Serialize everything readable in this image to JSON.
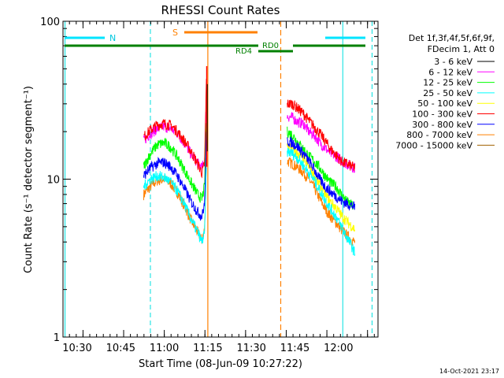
{
  "chart_data": {
    "type": "line",
    "title": "RHESSI Count Rates",
    "xlabel": "Start Time (08-Jun-09 10:27:22)",
    "ylabel": "Count Rate (s⁻¹ detector segment⁻¹)",
    "y_scale": "log",
    "ylim": [
      1,
      100
    ],
    "xlim_minutes": [
      10.25,
      126.5
    ],
    "x_ticks": [
      "10:30",
      "10:45",
      "11:00",
      "11:15",
      "11:30",
      "11:45",
      "12:00"
    ],
    "y_ticks": [
      "1",
      "10",
      "100"
    ],
    "grid": false,
    "legend_position": "right",
    "legend_header": [
      "Det 1f,3f,4f,5f,6f,9f,",
      "FDecim 1, Att 0"
    ],
    "footer": "14-Oct-2021 23:17",
    "flags": {
      "N_label": "N",
      "S_label": "S",
      "RD0_label": "RD0",
      "RD4_label": "RD4",
      "night_lines_minutes": [
        42.5,
        113.5,
        124.3
      ],
      "saa_lines_minutes": [
        63.7,
        90.6
      ]
    },
    "series": [
      {
        "name": "3 - 6 keV",
        "color": "#000000",
        "values_before": [],
        "values_after": []
      },
      {
        "name": "6 - 12 keV",
        "color": "#ff00ff",
        "x_before": [
          40,
          42.5,
          45,
          47.5,
          50,
          52.5,
          55,
          57.5,
          60,
          61.5,
          62.5,
          63.2
        ],
        "values_before": [
          17.5,
          19.5,
          20.8,
          21.5,
          21,
          19.5,
          17,
          14.5,
          12.6,
          11.8,
          13,
          30
        ],
        "x_after": [
          93,
          95,
          97,
          99,
          101,
          103,
          105,
          107,
          109,
          111,
          113,
          115,
          117,
          118
        ],
        "values_after": [
          25,
          24.5,
          23,
          22.5,
          20,
          19,
          17,
          15.8,
          14.5,
          14,
          13.2,
          12.5,
          12,
          11.8
        ]
      },
      {
        "name": "12 - 25 keV",
        "color": "#00ff00",
        "x_before": [
          40,
          42.5,
          45,
          47.5,
          50,
          52.5,
          55,
          57.5,
          60,
          61.5,
          62.5,
          63.2
        ],
        "values_before": [
          12,
          14.5,
          16.5,
          17,
          16,
          13.8,
          11.5,
          9.5,
          8,
          7.5,
          9,
          25
        ],
        "x_after": [
          93,
          95,
          97,
          99,
          101,
          103,
          105,
          107,
          109,
          111,
          113,
          115,
          117,
          118
        ],
        "values_after": [
          20,
          19,
          17,
          15.5,
          14,
          13,
          11.8,
          10.5,
          9.5,
          9,
          8,
          7.2,
          6.8,
          6.5
        ]
      },
      {
        "name": "25 - 50 keV",
        "color": "#00ffff",
        "x_before": [
          40,
          42.5,
          45,
          47.5,
          50,
          52.5,
          55,
          57.5,
          60,
          61.5,
          62.5,
          63.2
        ],
        "values_before": [
          9,
          10,
          10.5,
          10.3,
          9.6,
          8.4,
          7,
          5.6,
          4.6,
          4,
          4.5,
          12
        ],
        "x_after": [
          93,
          95,
          97,
          99,
          101,
          103,
          105,
          107,
          109,
          111,
          113,
          115,
          117,
          118
        ],
        "values_after": [
          15,
          14.5,
          13.5,
          12.2,
          11,
          9.8,
          8.5,
          7.4,
          6.5,
          5.8,
          5,
          4.3,
          3.7,
          3.4
        ]
      },
      {
        "name": "50 - 100 keV",
        "color": "#ffff00",
        "x_before": [],
        "values_before": [],
        "x_after": [
          93,
          95,
          97,
          99,
          101,
          103,
          105,
          107,
          109,
          111,
          113,
          115,
          117,
          118
        ],
        "values_after": [
          16.5,
          15.5,
          14.5,
          13.5,
          12,
          10.5,
          9.2,
          8,
          7.2,
          6.6,
          5.9,
          5.4,
          5,
          4.8
        ]
      },
      {
        "name": "100 - 300 keV",
        "color": "#ff0000",
        "x_before": [
          40,
          42.5,
          45,
          47.5,
          50,
          52.5,
          55,
          57.5,
          60,
          61.5,
          62.5,
          63.2
        ],
        "values_before": [
          18.5,
          20.5,
          22,
          22.5,
          22,
          20,
          17.5,
          15,
          12.5,
          11,
          12.5,
          45
        ],
        "x_after": [
          93,
          95,
          97,
          99,
          101,
          103,
          105,
          107,
          109,
          111,
          113,
          115,
          117,
          118
        ],
        "values_after": [
          30,
          30,
          28,
          26,
          23.5,
          21.5,
          19.5,
          17.5,
          15.5,
          14.3,
          13,
          12.5,
          12,
          11.8
        ]
      },
      {
        "name": "300 - 800 keV",
        "color": "#0000ff",
        "x_before": [
          40,
          42.5,
          45,
          47.5,
          50,
          52.5,
          55,
          57.5,
          60,
          61.5,
          62.5,
          63.2
        ],
        "values_before": [
          10.5,
          11.8,
          12.6,
          12.8,
          12,
          10.5,
          8.8,
          7.2,
          6.2,
          5.8,
          7,
          20
        ],
        "x_after": [
          93,
          95,
          97,
          99,
          101,
          103,
          105,
          107,
          109,
          111,
          113,
          115,
          117,
          118
        ],
        "values_after": [
          17.5,
          17,
          16,
          14.5,
          13,
          11.5,
          10,
          9,
          8.3,
          7.8,
          7.3,
          7,
          6.8,
          6.6
        ]
      },
      {
        "name": "800 - 7000 keV",
        "color": "#ff8000",
        "x_before": [
          40,
          42.5,
          45,
          47.5,
          50,
          52.5,
          55,
          57.5,
          60,
          61.5,
          62.5,
          63.2
        ],
        "values_before": [
          8,
          9,
          9.8,
          10,
          9.4,
          8.2,
          6.8,
          5.5,
          4.6,
          4.1,
          4.8,
          14
        ],
        "x_after": [
          93,
          95,
          97,
          99,
          101,
          103,
          105,
          107,
          109,
          111,
          113,
          115,
          117,
          118
        ],
        "values_after": [
          13,
          12.5,
          11.8,
          11,
          10,
          8.8,
          7.5,
          6.5,
          5.8,
          5.3,
          4.8,
          4.4,
          4.1,
          4
        ]
      },
      {
        "name": "7000 - 15000 keV",
        "color": "#a06000",
        "values_before": [],
        "values_after": []
      }
    ]
  }
}
